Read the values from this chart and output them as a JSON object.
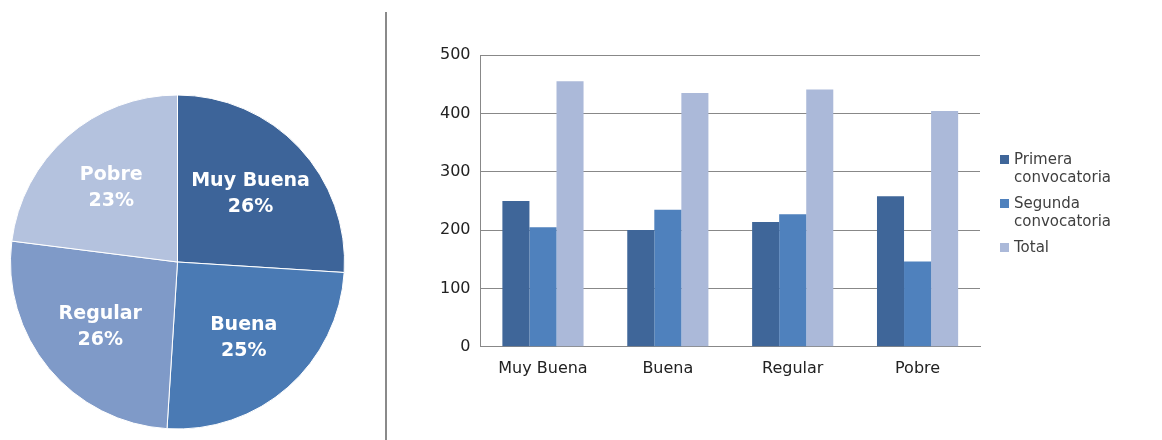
{
  "chart_data": [
    {
      "type": "pie",
      "categories": [
        "Muy Buena",
        "Buena",
        "Regular",
        "Pobre"
      ],
      "values": [
        26,
        25,
        26,
        23
      ],
      "colors": [
        "#3d6499",
        "#4a7ab4",
        "#7f9ac8",
        "#b4c2de"
      ],
      "value_labels": [
        "26%",
        "25%",
        "26%",
        "23%"
      ],
      "legend": false
    },
    {
      "type": "bar",
      "categories": [
        "Muy Buena",
        "Buena",
        "Regular",
        "Pobre"
      ],
      "series": [
        {
          "name": "Primera convocatoria",
          "color": "#3f6699",
          "values": [
            250,
            200,
            214,
            258
          ]
        },
        {
          "name": "Segunda convocatoria",
          "color": "#4f81bd",
          "values": [
            205,
            235,
            227,
            146
          ]
        },
        {
          "name": "Total",
          "color": "#abb9d9",
          "values": [
            455,
            435,
            441,
            404
          ]
        }
      ],
      "ylim": [
        0,
        500
      ],
      "yticks": [
        0,
        100,
        200,
        300,
        400,
        500
      ],
      "grid": "y",
      "legend": "right"
    }
  ]
}
